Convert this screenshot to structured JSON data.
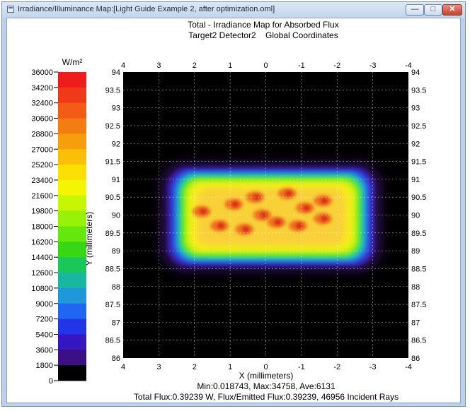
{
  "window": {
    "title": "Irradiance/Illuminance Map:[Light Guide Example 2, after optimization.oml]",
    "controls": {
      "minimize": "—",
      "maximize": "□",
      "close": "✕"
    }
  },
  "chart_data": {
    "type": "heatmap",
    "title": "Total - Irradiance Map for Absorbed Flux",
    "subtitle": "Target2 Detector2    Global Coordinates",
    "xlabel": "X (millimeters)",
    "ylabel": "Y (millimeters)",
    "x_ticks": [
      "4",
      "3",
      "2",
      "1",
      "0",
      "-1",
      "-2",
      "-3",
      "-4"
    ],
    "y_ticks": [
      "94",
      "93.5",
      "93",
      "92.5",
      "92",
      "91.5",
      "91",
      "90.5",
      "90",
      "89.5",
      "89",
      "88.5",
      "88",
      "87.5",
      "87",
      "86.5",
      "86"
    ],
    "xlim": [
      4,
      -4
    ],
    "ylim": [
      86,
      94
    ],
    "grid": true,
    "colorbar": {
      "unit": "W/m²",
      "labels": [
        "36000",
        "34200",
        "32400",
        "30600",
        "28800",
        "27000",
        "25200",
        "23400",
        "21600",
        "19800",
        "18000",
        "16200",
        "14400",
        "12600",
        "10800",
        "9000",
        "7200",
        "5400",
        "3600",
        "1800",
        "0"
      ],
      "colors": [
        "#ee1c1c",
        "#ef3a1a",
        "#f25c16",
        "#f47d12",
        "#f79e0d",
        "#fac008",
        "#fde003",
        "#f3f502",
        "#c6f505",
        "#97f208",
        "#66e80c",
        "#36d815",
        "#1ac85a",
        "#19b7a0",
        "#1e98d8",
        "#2066f0",
        "#2335e8",
        "#3516c0",
        "#3d0f85",
        "#2b084a",
        "#000000"
      ]
    },
    "footer": {
      "stats": "Min:0.018743, Max:34758, Ave:6131",
      "totals": "Total Flux:0.39239 W, Flux/Emitted Flux:0.39239, 46956 Incident Rays"
    },
    "illuminated_region": {
      "x": [
        -3.2,
        2.9
      ],
      "y": [
        88.5,
        91.4
      ],
      "peak": 34758
    },
    "hot_spots": [
      {
        "x": 1.8,
        "y": 90.1
      },
      {
        "x": 1.3,
        "y": 89.7
      },
      {
        "x": 0.9,
        "y": 90.3
      },
      {
        "x": 0.3,
        "y": 90.5
      },
      {
        "x": 0.1,
        "y": 90.0
      },
      {
        "x": -0.3,
        "y": 89.8
      },
      {
        "x": -0.6,
        "y": 90.6
      },
      {
        "x": -1.1,
        "y": 90.2
      },
      {
        "x": -1.6,
        "y": 90.4
      },
      {
        "x": -1.6,
        "y": 89.9
      },
      {
        "x": 0.6,
        "y": 89.6
      },
      {
        "x": -0.9,
        "y": 89.7
      }
    ]
  }
}
